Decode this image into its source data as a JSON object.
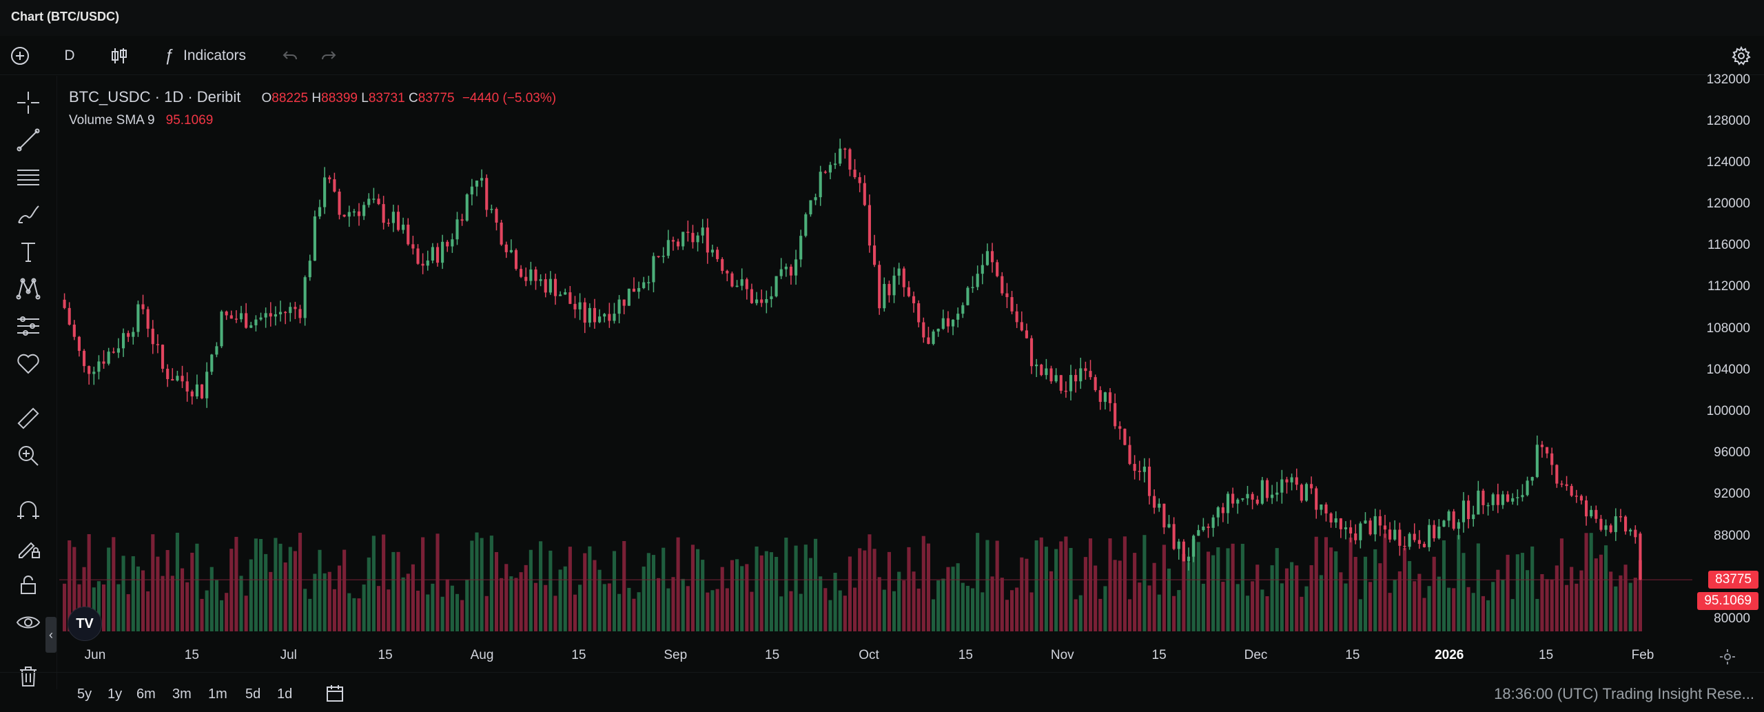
{
  "window": {
    "title": "Chart (BTC/USDC)"
  },
  "toolbar": {
    "interval": "D",
    "indicators_label": "Indicators",
    "icons": [
      "add-icon",
      "candlestick-icon",
      "function-icon",
      "undo-icon",
      "redo-icon",
      "settings-icon"
    ]
  },
  "legend": {
    "symbol": "BTC_USDC · 1D · Deribit",
    "o_label": "O",
    "o_value": "88225",
    "h_label": "H",
    "h_value": "88399",
    "l_label": "L",
    "l_value": "83731",
    "c_label": "C",
    "c_value": "83775",
    "change": "−4440 (−5.03%)",
    "volume_label": "Volume SMA 9",
    "volume_value": "95.1069"
  },
  "left_tools": [
    "crosshair-icon",
    "trend-line-icon",
    "horizontal-lines-icon",
    "brush-icon",
    "text-icon",
    "pattern-icon",
    "forecast-icon",
    "favorites-icon",
    "ruler-icon",
    "zoom-in-icon",
    "magnet-icon",
    "lock-drawing-icon",
    "lock-icon",
    "eye-icon",
    "trash-icon"
  ],
  "price_axis": {
    "labels": [
      "132000",
      "128000",
      "124000",
      "120000",
      "116000",
      "112000",
      "108000",
      "104000",
      "100000",
      "96000",
      "92000",
      "88000",
      "80000"
    ],
    "last_price_badge": "83775",
    "volume_badge": "95.1069"
  },
  "time_axis": {
    "labels": [
      {
        "text": "Jun",
        "bold": false
      },
      {
        "text": "15",
        "bold": false
      },
      {
        "text": "Jul",
        "bold": false
      },
      {
        "text": "15",
        "bold": false
      },
      {
        "text": "Aug",
        "bold": false
      },
      {
        "text": "15",
        "bold": false
      },
      {
        "text": "Sep",
        "bold": false
      },
      {
        "text": "15",
        "bold": false
      },
      {
        "text": "Oct",
        "bold": false
      },
      {
        "text": "15",
        "bold": false
      },
      {
        "text": "Nov",
        "bold": false
      },
      {
        "text": "15",
        "bold": false
      },
      {
        "text": "Dec",
        "bold": false
      },
      {
        "text": "15",
        "bold": false
      },
      {
        "text": "2026",
        "bold": true
      },
      {
        "text": "15",
        "bold": false
      },
      {
        "text": "Feb",
        "bold": false
      }
    ]
  },
  "bottom": {
    "ranges": [
      "5y",
      "1y",
      "6m",
      "3m",
      "1m",
      "5d",
      "1d"
    ],
    "watermark": "18:36:00 (UTC)  Trading Insight Rese..."
  },
  "colors": {
    "up": "#26a69a",
    "up_body": "#4caf7a",
    "down": "#f23645",
    "down_body": "#e2455f",
    "vol_up": "#1f5e3e",
    "vol_down": "#7a2036",
    "bg": "#0a0c0c"
  },
  "chart_data": {
    "type": "candlestick",
    "symbol": "BTC_USDC",
    "interval": "1D",
    "ylim": [
      78000,
      132500
    ],
    "anchors": [
      {
        "day": 0,
        "price": 110000
      },
      {
        "day": 4,
        "price": 104000
      },
      {
        "day": 10,
        "price": 106000
      },
      {
        "day": 16,
        "price": 110000
      },
      {
        "day": 20,
        "price": 104000
      },
      {
        "day": 28,
        "price": 102000
      },
      {
        "day": 32,
        "price": 109000
      },
      {
        "day": 40,
        "price": 109000
      },
      {
        "day": 48,
        "price": 110000
      },
      {
        "day": 53,
        "price": 123000
      },
      {
        "day": 56,
        "price": 119000
      },
      {
        "day": 62,
        "price": 120000
      },
      {
        "day": 68,
        "price": 118000
      },
      {
        "day": 72,
        "price": 114000
      },
      {
        "day": 78,
        "price": 116000
      },
      {
        "day": 84,
        "price": 123000
      },
      {
        "day": 88,
        "price": 118000
      },
      {
        "day": 94,
        "price": 113000
      },
      {
        "day": 100,
        "price": 112000
      },
      {
        "day": 106,
        "price": 109000
      },
      {
        "day": 112,
        "price": 110000
      },
      {
        "day": 118,
        "price": 113000
      },
      {
        "day": 124,
        "price": 116000
      },
      {
        "day": 130,
        "price": 117000
      },
      {
        "day": 136,
        "price": 113000
      },
      {
        "day": 142,
        "price": 110000
      },
      {
        "day": 148,
        "price": 114000
      },
      {
        "day": 154,
        "price": 123000
      },
      {
        "day": 158,
        "price": 125000
      },
      {
        "day": 162,
        "price": 122000
      },
      {
        "day": 166,
        "price": 111000
      },
      {
        "day": 170,
        "price": 113000
      },
      {
        "day": 176,
        "price": 106000
      },
      {
        "day": 182,
        "price": 110000
      },
      {
        "day": 188,
        "price": 115000
      },
      {
        "day": 192,
        "price": 111000
      },
      {
        "day": 198,
        "price": 104000
      },
      {
        "day": 204,
        "price": 102000
      },
      {
        "day": 208,
        "price": 105000
      },
      {
        "day": 212,
        "price": 101000
      },
      {
        "day": 216,
        "price": 96000
      },
      {
        "day": 220,
        "price": 94000
      },
      {
        "day": 224,
        "price": 89000
      },
      {
        "day": 228,
        "price": 86000
      },
      {
        "day": 232,
        "price": 88000
      },
      {
        "day": 236,
        "price": 91000
      },
      {
        "day": 242,
        "price": 92000
      },
      {
        "day": 248,
        "price": 93000
      },
      {
        "day": 254,
        "price": 92000
      },
      {
        "day": 260,
        "price": 88000
      },
      {
        "day": 266,
        "price": 89000
      },
      {
        "day": 272,
        "price": 88000
      },
      {
        "day": 278,
        "price": 88000
      },
      {
        "day": 284,
        "price": 90000
      },
      {
        "day": 290,
        "price": 92000
      },
      {
        "day": 296,
        "price": 91000
      },
      {
        "day": 300,
        "price": 96000
      },
      {
        "day": 306,
        "price": 93000
      },
      {
        "day": 310,
        "price": 90000
      },
      {
        "day": 316,
        "price": 89000
      },
      {
        "day": 320,
        "price": 88225
      },
      {
        "day": 321,
        "price": 83775
      }
    ],
    "last_candle": {
      "open": 88225,
      "high": 88399,
      "low": 83731,
      "close": 83775
    }
  }
}
